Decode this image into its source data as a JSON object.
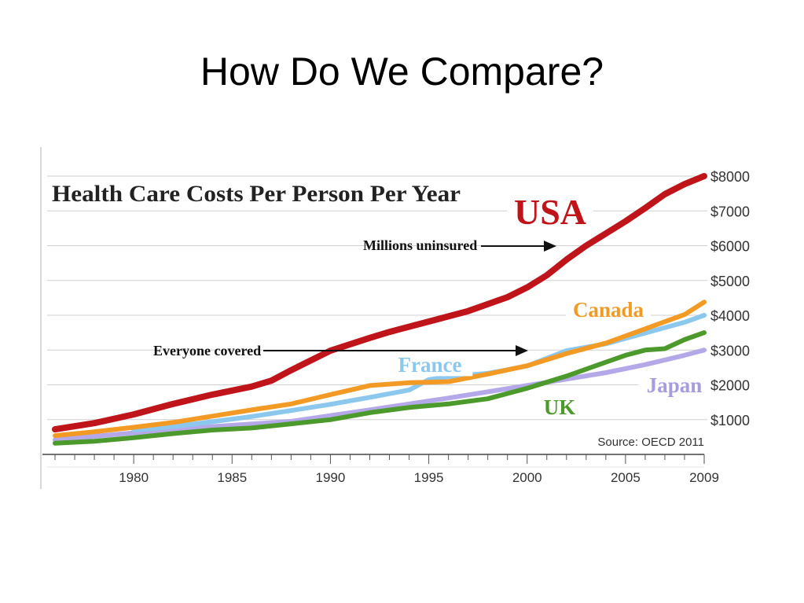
{
  "slide": {
    "title": "How Do We Compare?"
  },
  "chart_data": {
    "type": "line",
    "title": "Health Care Costs Per Person Per Year",
    "source": "Source: OECD 2011",
    "xlim": [
      1975.6,
      2009
    ],
    "ylim": [
      0,
      8300
    ],
    "x_ticks": [
      1980,
      1985,
      1990,
      1995,
      2000,
      2005,
      2009
    ],
    "y_ticks": [
      {
        "value": 1000,
        "label": "$1000"
      },
      {
        "value": 2000,
        "label": "$2000"
      },
      {
        "value": 3000,
        "label": "$3000"
      },
      {
        "value": 4000,
        "label": "$4000"
      },
      {
        "value": 5000,
        "label": "$5000"
      },
      {
        "value": 6000,
        "label": "$6000"
      },
      {
        "value": 7000,
        "label": "$7000"
      },
      {
        "value": 8000,
        "label": "$8000"
      }
    ],
    "grid": true,
    "series": [
      {
        "name": "USA",
        "color": "#c0141b",
        "label_color": "#c0141b",
        "x": [
          1976,
          1978,
          1980,
          1982,
          1984,
          1986,
          1987,
          1988,
          1990,
          1992,
          1993,
          1995,
          1997,
          1999,
          2000,
          2001,
          2002,
          2003,
          2004,
          2005,
          2006,
          2007,
          2008,
          2009
        ],
        "values": [
          720,
          900,
          1150,
          1450,
          1720,
          1950,
          2120,
          2420,
          2980,
          3350,
          3520,
          3820,
          4120,
          4520,
          4800,
          5150,
          5600,
          6000,
          6350,
          6700,
          7080,
          7480,
          7770,
          8000
        ]
      },
      {
        "name": "Canada",
        "color": "#f39a25",
        "label_color": "#f39a25",
        "x": [
          1976,
          1978,
          1980,
          1982,
          1984,
          1986,
          1988,
          1990,
          1992,
          1994,
          1996,
          1998,
          2000,
          2002,
          2004,
          2006,
          2008,
          2009
        ],
        "values": [
          540,
          650,
          780,
          920,
          1100,
          1280,
          1450,
          1720,
          1980,
          2060,
          2090,
          2310,
          2550,
          2900,
          3200,
          3610,
          4020,
          4380
        ]
      },
      {
        "name": "France",
        "color": "#8cc8ee",
        "label_color": "#8cc8ee",
        "x": [
          1980,
          1982,
          1984,
          1986,
          1988,
          1990,
          1992,
          1994,
          1995,
          1996,
          1998,
          2000,
          2002,
          2004,
          2006,
          2008,
          2009
        ],
        "values": [
          700,
          800,
          940,
          1090,
          1260,
          1440,
          1640,
          1850,
          2150,
          2230,
          2330,
          2540,
          2980,
          3180,
          3490,
          3800,
          4000
        ]
      },
      {
        "name": "Japan",
        "color": "#b4a8e8",
        "label_color": "#a89ce0",
        "x": [
          1976,
          1980,
          1984,
          1988,
          1992,
          1996,
          2000,
          2004,
          2006,
          2008,
          2009
        ],
        "values": [
          420,
          620,
          800,
          950,
          1280,
          1620,
          1980,
          2350,
          2580,
          2850,
          3000
        ]
      },
      {
        "name": "UK",
        "color": "#4d9a2c",
        "label_color": "#4d9a2c",
        "x": [
          1976,
          1978,
          1980,
          1982,
          1984,
          1986,
          1988,
          1990,
          1992,
          1994,
          1996,
          1998,
          2000,
          2002,
          2004,
          2005,
          2006,
          2007,
          2008,
          2009
        ],
        "values": [
          320,
          380,
          480,
          600,
          700,
          760,
          880,
          1000,
          1200,
          1350,
          1450,
          1600,
          1900,
          2250,
          2650,
          2850,
          3000,
          3040,
          3300,
          3500
        ]
      }
    ],
    "annotations": [
      {
        "text": "Millions uninsured",
        "arrow_x": [
          1996,
          2001.7
        ],
        "y": 5400
      },
      {
        "text": "Everyone covered",
        "arrow_x": [
          1988,
          2000.3
        ],
        "y": 3000
      }
    ]
  }
}
